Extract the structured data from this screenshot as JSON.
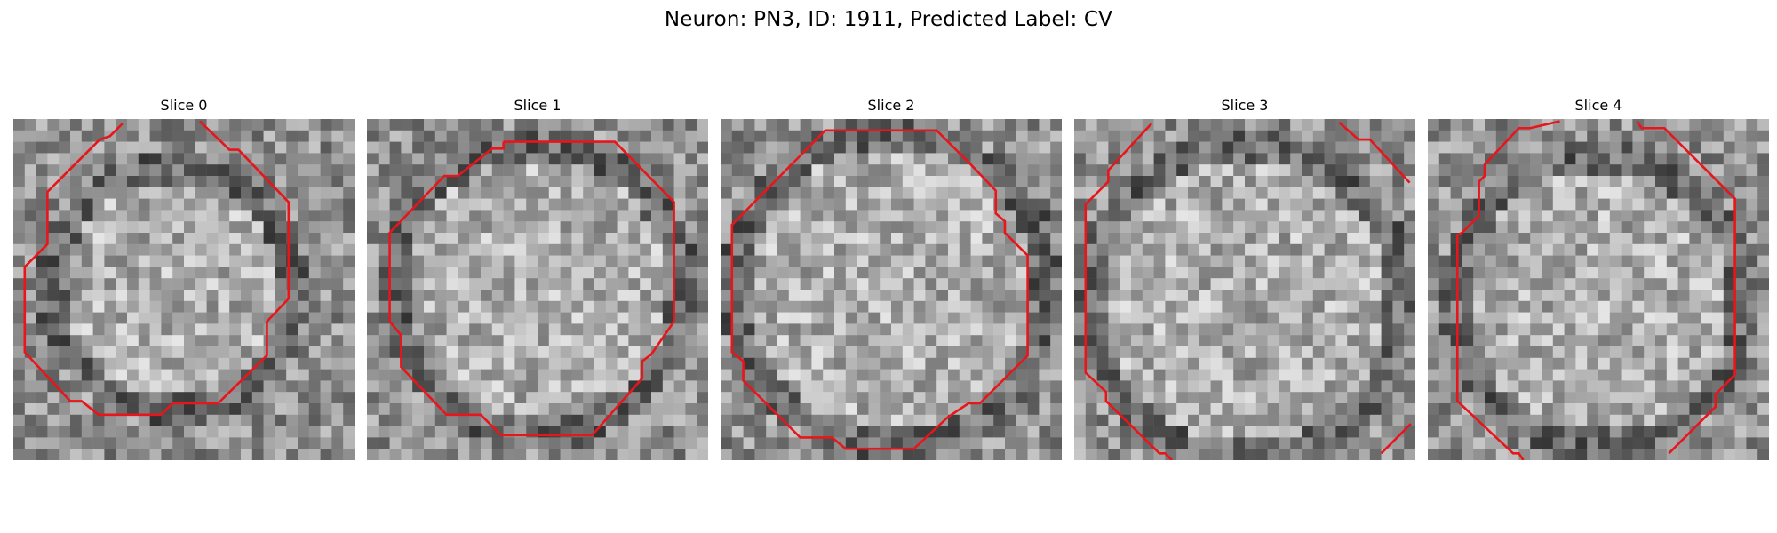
{
  "figure": {
    "title": "Neuron: PN3, ID: 1911, Predicted Label: CV"
  },
  "colors": {
    "contour": "#e8151b",
    "background": "#ffffff"
  },
  "panels": [
    {
      "title": "Slice 0"
    },
    {
      "title": "Slice 1"
    },
    {
      "title": "Slice 2"
    },
    {
      "title": "Slice 3"
    },
    {
      "title": "Slice 4"
    }
  ]
}
